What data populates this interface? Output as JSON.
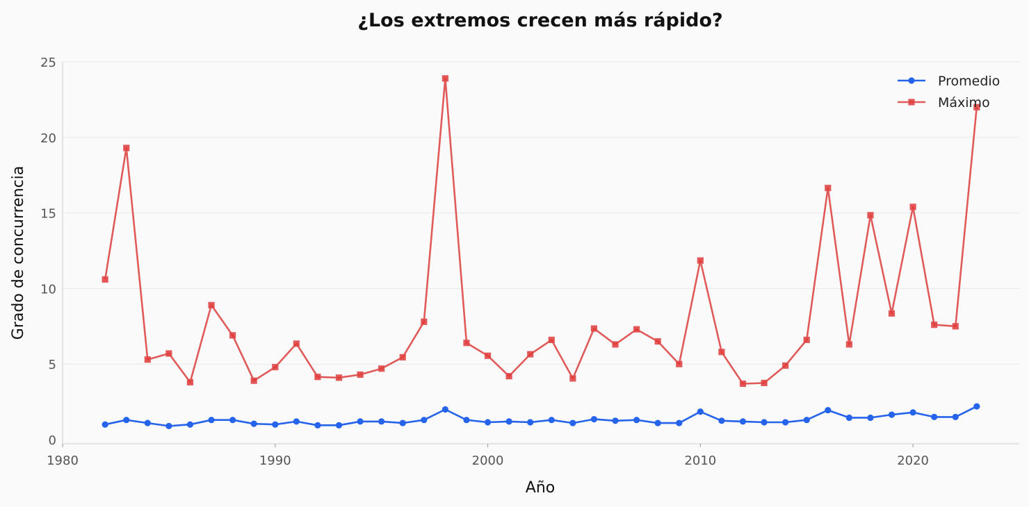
{
  "chart_data": {
    "type": "line",
    "title": "¿Los extremos crecen más rápido?",
    "xlabel": "Año",
    "ylabel": "Grado de concurrencia",
    "xlim": [
      1980,
      2025
    ],
    "ylim": [
      0,
      25
    ],
    "xticks": [
      1980,
      1990,
      2000,
      2010,
      2020
    ],
    "yticks": [
      0,
      5,
      10,
      15,
      20,
      25
    ],
    "grid": true,
    "legend_position": "top-right",
    "x": [
      1982,
      1983,
      1984,
      1985,
      1986,
      1987,
      1988,
      1989,
      1990,
      1991,
      1992,
      1993,
      1994,
      1995,
      1996,
      1997,
      1998,
      1999,
      2000,
      2001,
      2002,
      2003,
      2004,
      2005,
      2006,
      2007,
      2008,
      2009,
      2010,
      2011,
      2012,
      2013,
      2014,
      2015,
      2016,
      2017,
      2018,
      2019,
      2020,
      2021,
      2022,
      2023
    ],
    "series": [
      {
        "name": "Promedio",
        "color": "#2563eb",
        "marker": "circle",
        "values": [
          1.0,
          1.3,
          1.1,
          0.9,
          1.0,
          1.3,
          1.3,
          1.05,
          1.0,
          1.2,
          0.95,
          0.95,
          1.2,
          1.2,
          1.1,
          1.3,
          2.0,
          1.3,
          1.15,
          1.2,
          1.15,
          1.3,
          1.1,
          1.35,
          1.25,
          1.3,
          1.1,
          1.1,
          1.85,
          1.25,
          1.2,
          1.15,
          1.15,
          1.3,
          1.95,
          1.45,
          1.45,
          1.65,
          1.8,
          1.5,
          1.5,
          2.2
        ]
      },
      {
        "name": "Máximo",
        "color": "#e05a5a",
        "marker": "square",
        "values": [
          10.6,
          19.3,
          5.3,
          5.7,
          3.8,
          8.9,
          6.9,
          3.9,
          4.8,
          6.35,
          4.15,
          4.1,
          4.3,
          4.7,
          5.45,
          7.8,
          23.9,
          6.4,
          5.55,
          4.2,
          5.65,
          6.6,
          4.05,
          7.35,
          6.3,
          7.3,
          6.5,
          5.0,
          11.85,
          5.8,
          3.7,
          3.75,
          4.9,
          6.6,
          16.65,
          6.3,
          14.85,
          8.35,
          15.4,
          7.6,
          7.5,
          22.0
        ]
      }
    ]
  }
}
